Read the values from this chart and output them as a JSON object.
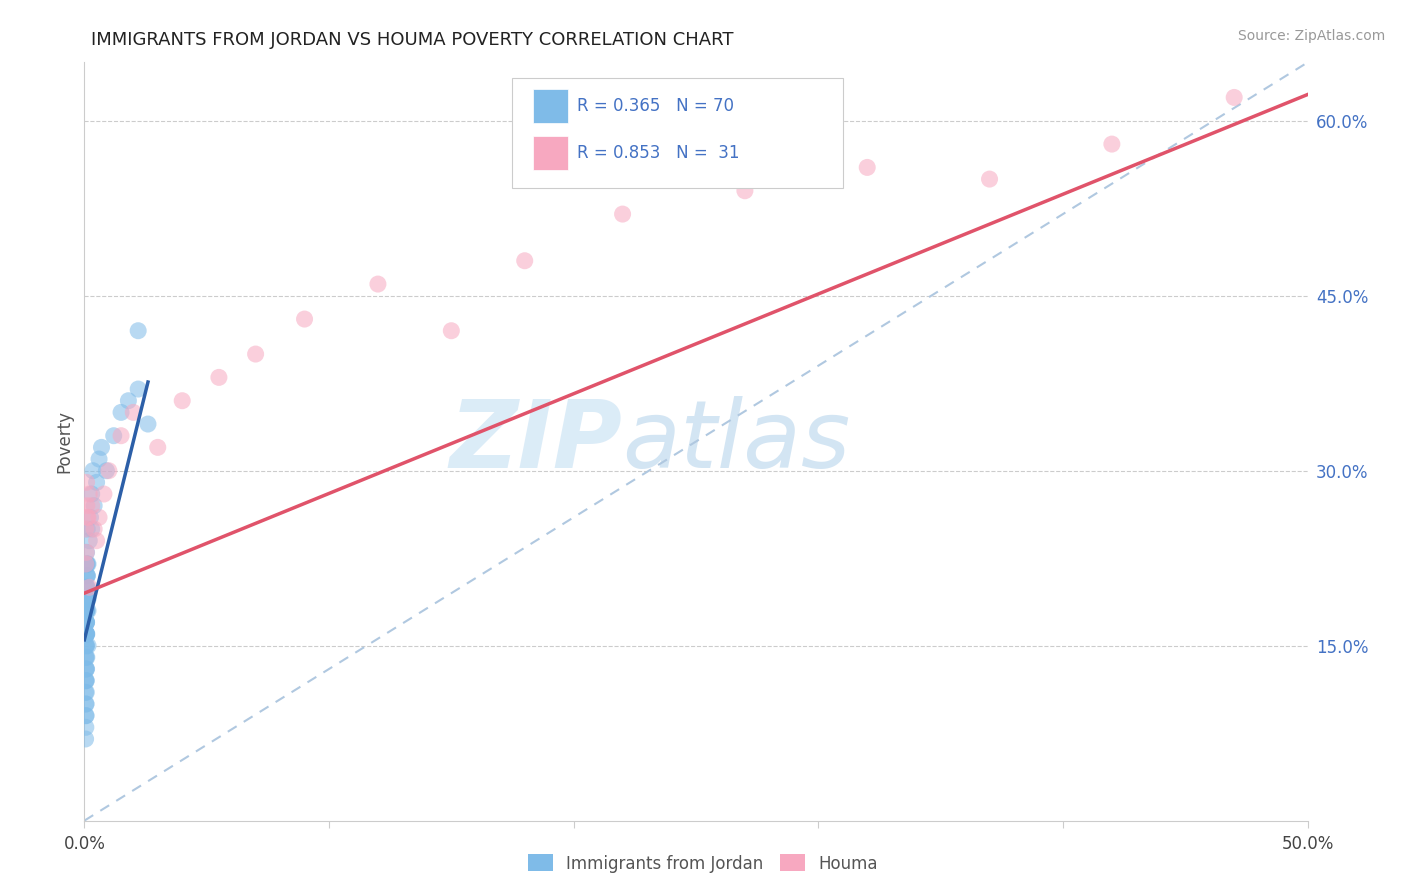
{
  "title": "IMMIGRANTS FROM JORDAN VS HOUMA POVERTY CORRELATION CHART",
  "source": "Source: ZipAtlas.com",
  "ylabel": "Poverty",
  "xlim": [
    0.0,
    0.5
  ],
  "ylim": [
    0.0,
    0.65
  ],
  "x_ticks": [
    0.0,
    0.1,
    0.2,
    0.3,
    0.4,
    0.5
  ],
  "x_tick_labels": [
    "0.0%",
    "",
    "",
    "",
    "",
    "50.0%"
  ],
  "y_ticks_right": [
    0.15,
    0.3,
    0.45,
    0.6
  ],
  "y_tick_labels_right": [
    "15.0%",
    "30.0%",
    "45.0%",
    "60.0%"
  ],
  "legend_label1": "Immigrants from Jordan",
  "legend_label2": "Houma",
  "color_blue": "#7fbbe8",
  "color_pink": "#f7a8c0",
  "color_blue_line": "#2c5fa8",
  "color_pink_line": "#e0536a",
  "color_ref_line": "#b0c8e0",
  "title_color": "#222222",
  "axis_label_color": "#555555",
  "right_tick_color": "#4472c4",
  "legend_text_color": "#4472c4",
  "grid_color": "#cccccc",
  "blue_scatter_x": [
    0.0005,
    0.0008,
    0.001,
    0.0012,
    0.0015,
    0.0008,
    0.001,
    0.0006,
    0.0009,
    0.0012,
    0.0015,
    0.0007,
    0.001,
    0.0008,
    0.0006,
    0.001,
    0.0012,
    0.0008,
    0.0015,
    0.001,
    0.0007,
    0.0009,
    0.0006,
    0.001,
    0.0008,
    0.0012,
    0.0007,
    0.0009,
    0.001,
    0.0006,
    0.0008,
    0.001,
    0.0007,
    0.0009,
    0.0005,
    0.001,
    0.0008,
    0.0012,
    0.0006,
    0.0009,
    0.0007,
    0.001,
    0.0008,
    0.0006,
    0.0009,
    0.0007,
    0.001,
    0.0008,
    0.0005,
    0.0006,
    0.002,
    0.0025,
    0.003,
    0.0035,
    0.004,
    0.005,
    0.006,
    0.007,
    0.009,
    0.012,
    0.015,
    0.018,
    0.022,
    0.026,
    0.022,
    0.003,
    0.0015,
    0.001,
    0.0008,
    0.0006
  ],
  "blue_scatter_y": [
    0.2,
    0.22,
    0.18,
    0.25,
    0.19,
    0.17,
    0.21,
    0.16,
    0.23,
    0.2,
    0.15,
    0.18,
    0.22,
    0.17,
    0.14,
    0.19,
    0.21,
    0.16,
    0.18,
    0.2,
    0.13,
    0.17,
    0.15,
    0.19,
    0.16,
    0.22,
    0.14,
    0.18,
    0.2,
    0.12,
    0.16,
    0.19,
    0.13,
    0.17,
    0.11,
    0.18,
    0.15,
    0.21,
    0.1,
    0.16,
    0.09,
    0.14,
    0.12,
    0.08,
    0.13,
    0.1,
    0.16,
    0.11,
    0.07,
    0.09,
    0.24,
    0.26,
    0.28,
    0.3,
    0.27,
    0.29,
    0.31,
    0.32,
    0.3,
    0.33,
    0.35,
    0.36,
    0.37,
    0.34,
    0.42,
    0.25,
    0.22,
    0.19,
    0.15,
    0.12
  ],
  "pink_scatter_x": [
    0.0005,
    0.001,
    0.0015,
    0.002,
    0.0008,
    0.0012,
    0.0006,
    0.0009,
    0.003,
    0.004,
    0.005,
    0.006,
    0.008,
    0.01,
    0.015,
    0.02,
    0.03,
    0.04,
    0.055,
    0.07,
    0.09,
    0.12,
    0.15,
    0.18,
    0.22,
    0.27,
    0.32,
    0.37,
    0.42,
    0.47,
    0.002
  ],
  "pink_scatter_y": [
    0.25,
    0.27,
    0.26,
    0.28,
    0.23,
    0.26,
    0.22,
    0.29,
    0.27,
    0.25,
    0.24,
    0.26,
    0.28,
    0.3,
    0.33,
    0.35,
    0.32,
    0.36,
    0.38,
    0.4,
    0.43,
    0.46,
    0.42,
    0.48,
    0.52,
    0.54,
    0.56,
    0.55,
    0.58,
    0.62,
    0.2
  ],
  "blue_line_x": [
    0.0,
    0.026
  ],
  "blue_line_y_start": 0.155,
  "blue_line_slope": 8.5,
  "pink_line_x": [
    0.0,
    0.5
  ],
  "pink_line_y_start": 0.195,
  "pink_line_slope": 0.855
}
